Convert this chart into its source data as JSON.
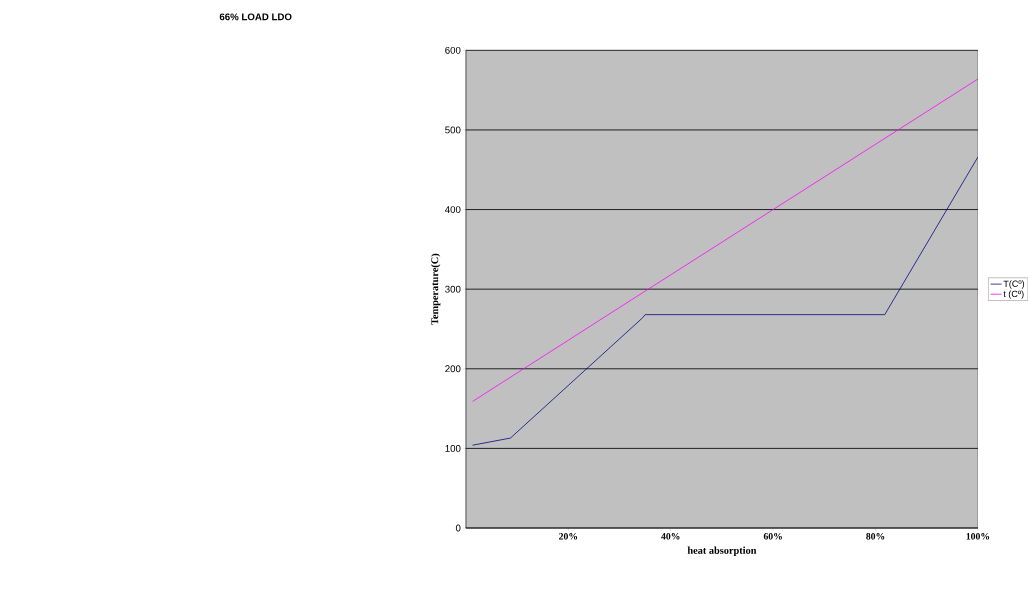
{
  "chart_data": {
    "type": "line",
    "title": "66% LOAD LDO",
    "xlabel": "heat absorption",
    "ylabel": "Temperature(C)",
    "series": [
      {
        "name": "T(Cº)",
        "color": "#000080",
        "x": [
          1.3,
          8.7,
          34.5,
          35,
          81.8,
          100
        ],
        "values": [
          104,
          113,
          264,
          268,
          268,
          466
        ]
      },
      {
        "name": "t (Cº)",
        "color": "#ff00ff",
        "x": [
          1.3,
          30,
          60,
          100
        ],
        "values": [
          159,
          277,
          400,
          564
        ]
      }
    ],
    "xlim": [
      0,
      100
    ],
    "ylim": [
      0,
      600
    ],
    "xticks": [
      {
        "value": 20,
        "label": "20%"
      },
      {
        "value": 40,
        "label": "40%"
      },
      {
        "value": 60,
        "label": "60%"
      },
      {
        "value": 80,
        "label": "80%"
      },
      {
        "value": 100,
        "label": "100%"
      }
    ],
    "yticks": [
      0,
      100,
      200,
      300,
      400,
      500,
      600
    ],
    "grid": "y",
    "legend": "right",
    "marker": "none",
    "line_style": "solid"
  }
}
